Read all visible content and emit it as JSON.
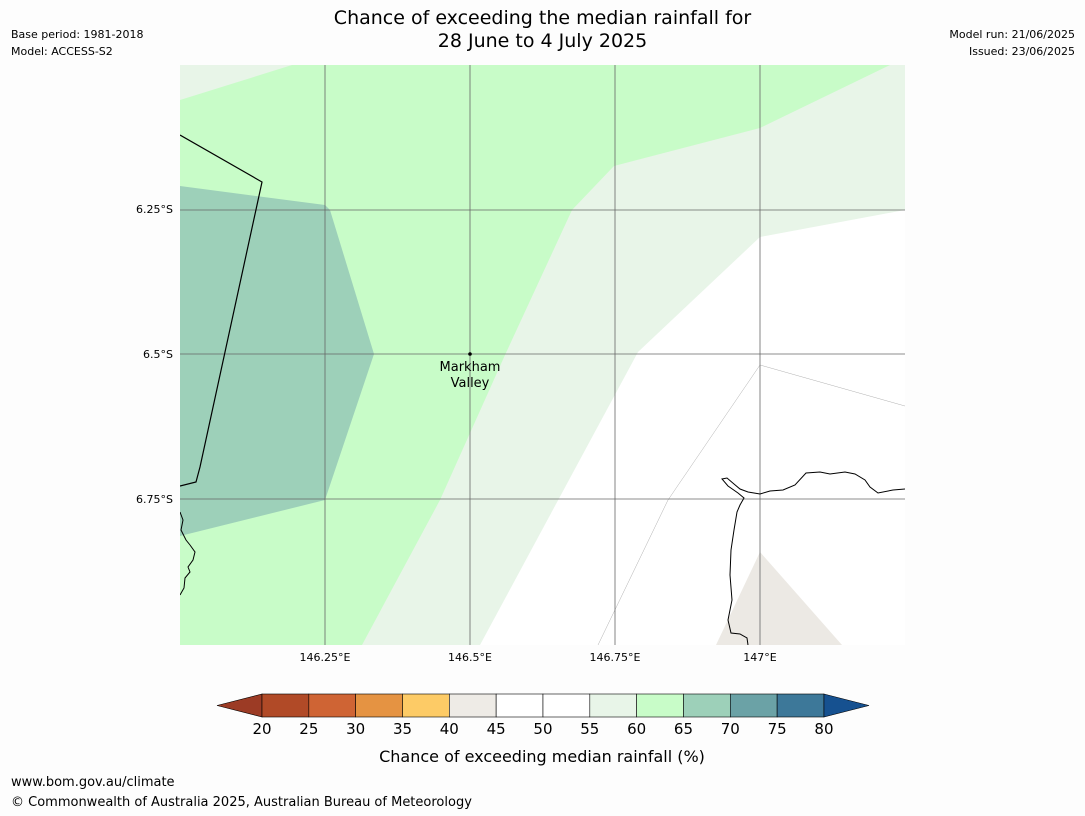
{
  "header": {
    "title_line1": "Chance of exceeding the median rainfall for",
    "title_line2": "28 June to 4 July 2025",
    "base_period": "Base period: 1981-2018",
    "model": "Model: ACCESS-S2",
    "model_run": "Model run: 21/06/2025",
    "issued": "Issued: 23/06/2025"
  },
  "map": {
    "lat_labels": [
      "6.25°S",
      "6.5°S",
      "6.75°S"
    ],
    "lon_labels": [
      "146.25°E",
      "146.5°E",
      "146.75°E",
      "147°E"
    ],
    "place": {
      "name_line1": "Markham",
      "name_line2": "Valley"
    },
    "region_colors": {
      "band_55_60": "#e8f5e8",
      "band_60_65": "#c8fcc8",
      "band_65_70": "#9dd0b9",
      "band_40_45": "#ece9e4"
    }
  },
  "colorbar": {
    "label": "Chance of exceeding median rainfall (%)",
    "ticks": [
      "20",
      "25",
      "30",
      "35",
      "40",
      "45",
      "50",
      "55",
      "60",
      "65",
      "70",
      "75",
      "80"
    ],
    "colors": [
      "#9c3b25",
      "#b14a27",
      "#cf6434",
      "#e59342",
      "#fdcb66",
      "#eeebe6",
      "#ffffff",
      "#ffffff",
      "#e8f5e8",
      "#c8fcc8",
      "#9dd0b9",
      "#6ba2a6",
      "#3d7899",
      "#165190"
    ]
  },
  "footer": {
    "url": "www.bom.gov.au/climate",
    "copyright": "© Commonwealth of Australia 2025, Australian Bureau of Meteorology"
  }
}
